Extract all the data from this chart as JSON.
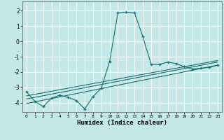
{
  "xlabel": "Humidex (Indice chaleur)",
  "background_color": "#c2e8e8",
  "grid_color": "#ffffff",
  "line_color": "#1a6b6b",
  "xlim": [
    -0.5,
    23.5
  ],
  "ylim": [
    -4.6,
    2.6
  ],
  "xticks": [
    0,
    1,
    2,
    3,
    4,
    5,
    6,
    7,
    8,
    9,
    10,
    11,
    12,
    13,
    14,
    15,
    16,
    17,
    18,
    19,
    20,
    21,
    22,
    23
  ],
  "yticks": [
    -4,
    -3,
    -2,
    -1,
    0,
    1,
    2
  ],
  "series1_x": [
    0,
    1,
    2,
    3,
    4,
    5,
    6,
    7,
    8,
    9,
    10,
    11,
    12,
    13,
    14,
    15,
    16,
    17,
    18,
    19,
    20,
    21,
    22,
    23
  ],
  "series1_y": [
    -3.3,
    -3.9,
    -4.25,
    -3.7,
    -3.5,
    -3.65,
    -3.85,
    -4.4,
    -3.6,
    -3.05,
    -1.3,
    1.85,
    1.9,
    1.85,
    0.3,
    -1.5,
    -1.5,
    -1.35,
    -1.45,
    -1.65,
    -1.8,
    -1.75,
    -1.7,
    -1.55
  ],
  "trend1_x": [
    0,
    23
  ],
  "trend1_y": [
    -4.05,
    -1.55
  ],
  "trend2_x": [
    0,
    23
  ],
  "trend2_y": [
    -3.75,
    -1.35
  ],
  "trend3_x": [
    0,
    23
  ],
  "trend3_y": [
    -3.55,
    -1.25
  ]
}
